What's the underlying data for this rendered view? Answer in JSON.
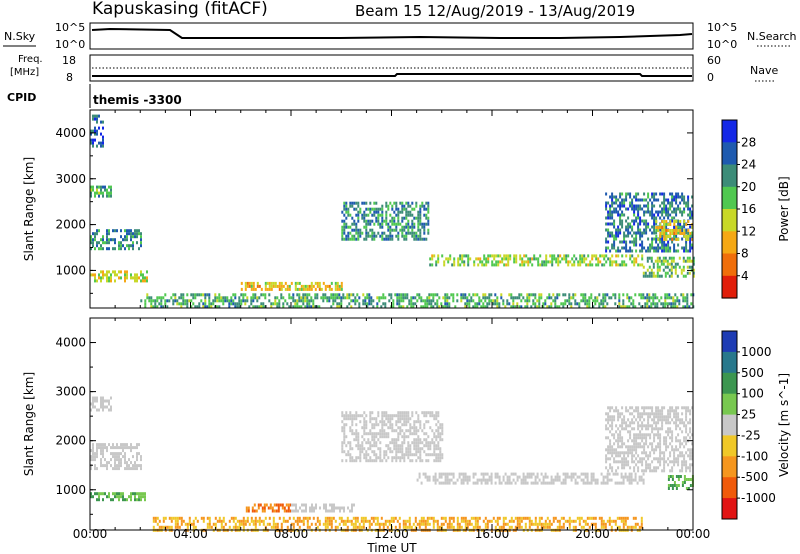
{
  "header": {
    "station": "Kapuskasing (fitACF)",
    "beam_dates": "Beam 15  12/Aug/2019 - 13/Aug/2019"
  },
  "nsky_panel": {
    "left_label": "N.Sky",
    "right_label": "N.Search",
    "ticks_left": [
      "10^5",
      "10^0"
    ],
    "ticks_right": [
      "10^5",
      "10^0"
    ]
  },
  "freq_panel": {
    "label_line1": "Freq.",
    "label_line2": "[MHz]",
    "ticks_left": [
      "18",
      "8"
    ],
    "ticks_right": [
      "60",
      "0"
    ],
    "right_label": "Nave"
  },
  "cpid_panel": {
    "label": "CPID",
    "text": "themis -3300"
  },
  "time_axis": {
    "label": "Time UT",
    "ticks": [
      "00:00",
      "04:00",
      "08:00",
      "12:00",
      "16:00",
      "20:00",
      "00:00"
    ]
  },
  "chart_data": [
    {
      "type": "heatmap",
      "title": "Power",
      "xlabel": "Time UT",
      "ylabel": "Slant Range [km]",
      "xlim": [
        0,
        24
      ],
      "ylim": [
        180,
        4500
      ],
      "yticks": [
        "1000",
        "2000",
        "3000",
        "4000"
      ],
      "colorbar_label": "Power [dB]",
      "colorbar_ticks": [
        "4",
        "8",
        "12",
        "16",
        "20",
        "24",
        "28"
      ],
      "colorbar_colors": [
        "#1428e6",
        "#1e5aaf",
        "#3c8c78",
        "#50c850",
        "#c8d828",
        "#f5a814",
        "#f06e0a",
        "#e11e0a"
      ],
      "echo_bands": [
        {
          "t0": 0.0,
          "t1": 2.3,
          "r0": 800,
          "r1": 1000,
          "level": 18
        },
        {
          "t0": 0.0,
          "t1": 2.0,
          "r0": 1450,
          "r1": 1900,
          "level": 10
        },
        {
          "t0": 0.0,
          "t1": 0.8,
          "r0": 2600,
          "r1": 2850,
          "level": 12
        },
        {
          "t0": 0.0,
          "t1": 0.5,
          "r0": 3700,
          "r1": 4400,
          "level": 6
        },
        {
          "t0": 6.0,
          "t1": 10.0,
          "r0": 600,
          "r1": 750,
          "level": 20
        },
        {
          "t0": 2.0,
          "t1": 24.0,
          "r0": 200,
          "r1": 500,
          "level": 12
        },
        {
          "t0": 10.0,
          "t1": 13.5,
          "r0": 1700,
          "r1": 2500,
          "level": 10
        },
        {
          "t0": 13.5,
          "t1": 22.0,
          "r0": 1150,
          "r1": 1350,
          "level": 16
        },
        {
          "t0": 20.5,
          "t1": 24.0,
          "r0": 1400,
          "r1": 2700,
          "level": 8
        },
        {
          "t0": 22.0,
          "t1": 24.0,
          "r0": 900,
          "r1": 1300,
          "level": 14
        },
        {
          "t0": 22.5,
          "t1": 24.0,
          "r0": 1700,
          "r1": 2100,
          "level": 20
        }
      ]
    },
    {
      "type": "heatmap",
      "title": "Velocity",
      "xlabel": "Time UT",
      "ylabel": "Slant Range [km]",
      "xlim": [
        0,
        24
      ],
      "ylim": [
        180,
        4500
      ],
      "yticks": [
        "1000",
        "2000",
        "3000",
        "4000"
      ],
      "colorbar_label": "Velocity [m s^-1]",
      "colorbar_ticks": [
        "1000",
        "500",
        "100",
        "25",
        "-25",
        "-100",
        "-500",
        "-1000"
      ],
      "colorbar_colors": [
        "#1e3cb4",
        "#28788c",
        "#3c9650",
        "#78c850",
        "#c8c8c8",
        "#f0c828",
        "#f5961e",
        "#f05a0a",
        "#e11414"
      ],
      "echo_bands": [
        {
          "t0": 0.0,
          "t1": 2.2,
          "r0": 800,
          "r1": 950,
          "level": 100
        },
        {
          "t0": 0.0,
          "t1": 2.0,
          "r0": 1450,
          "r1": 1950,
          "level": 0
        },
        {
          "t0": 0.0,
          "t1": 0.8,
          "r0": 2600,
          "r1": 2900,
          "level": 0
        },
        {
          "t0": 6.2,
          "t1": 8.0,
          "r0": 580,
          "r1": 720,
          "level": -500
        },
        {
          "t0": 8.0,
          "t1": 10.5,
          "r0": 580,
          "r1": 720,
          "level": 0
        },
        {
          "t0": 2.5,
          "t1": 22.0,
          "r0": 200,
          "r1": 450,
          "level": -100
        },
        {
          "t0": 10.0,
          "t1": 14.0,
          "r0": 1600,
          "r1": 2600,
          "level": 0
        },
        {
          "t0": 13.0,
          "t1": 22.0,
          "r0": 1150,
          "r1": 1350,
          "level": 0
        },
        {
          "t0": 20.5,
          "t1": 24.0,
          "r0": 1400,
          "r1": 2700,
          "level": 0
        },
        {
          "t0": 23.0,
          "t1": 24.0,
          "r0": 1050,
          "r1": 1300,
          "level": 100
        }
      ]
    }
  ]
}
